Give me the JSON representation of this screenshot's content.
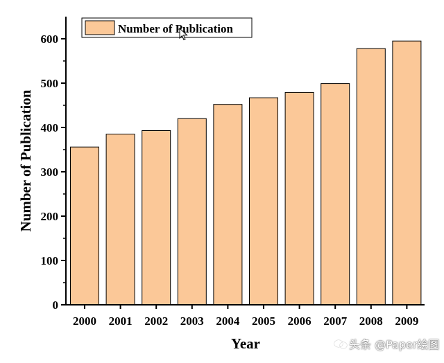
{
  "chart_data": {
    "type": "bar",
    "categories": [
      "2000",
      "2001",
      "2002",
      "2003",
      "2004",
      "2005",
      "2006",
      "2007",
      "2008",
      "2009"
    ],
    "series": [
      {
        "name": "Number of Publication",
        "values": [
          356,
          385,
          393,
          420,
          452,
          467,
          479,
          499,
          578,
          595
        ]
      }
    ],
    "title": "",
    "xlabel": "Year",
    "ylabel": "Number of Publication",
    "ylim": [
      0,
      650
    ],
    "yticks": [
      0,
      100,
      200,
      300,
      400,
      500,
      600
    ],
    "grid": false,
    "legend_position": "top-left",
    "bar_color": "#FBC898",
    "bar_edge_color": "#000000"
  },
  "watermark": {
    "text": "头条 @Paper绘图",
    "icon": "speech-bubbles-icon"
  },
  "cursor": {
    "icon": "mouse-pointer-icon"
  }
}
